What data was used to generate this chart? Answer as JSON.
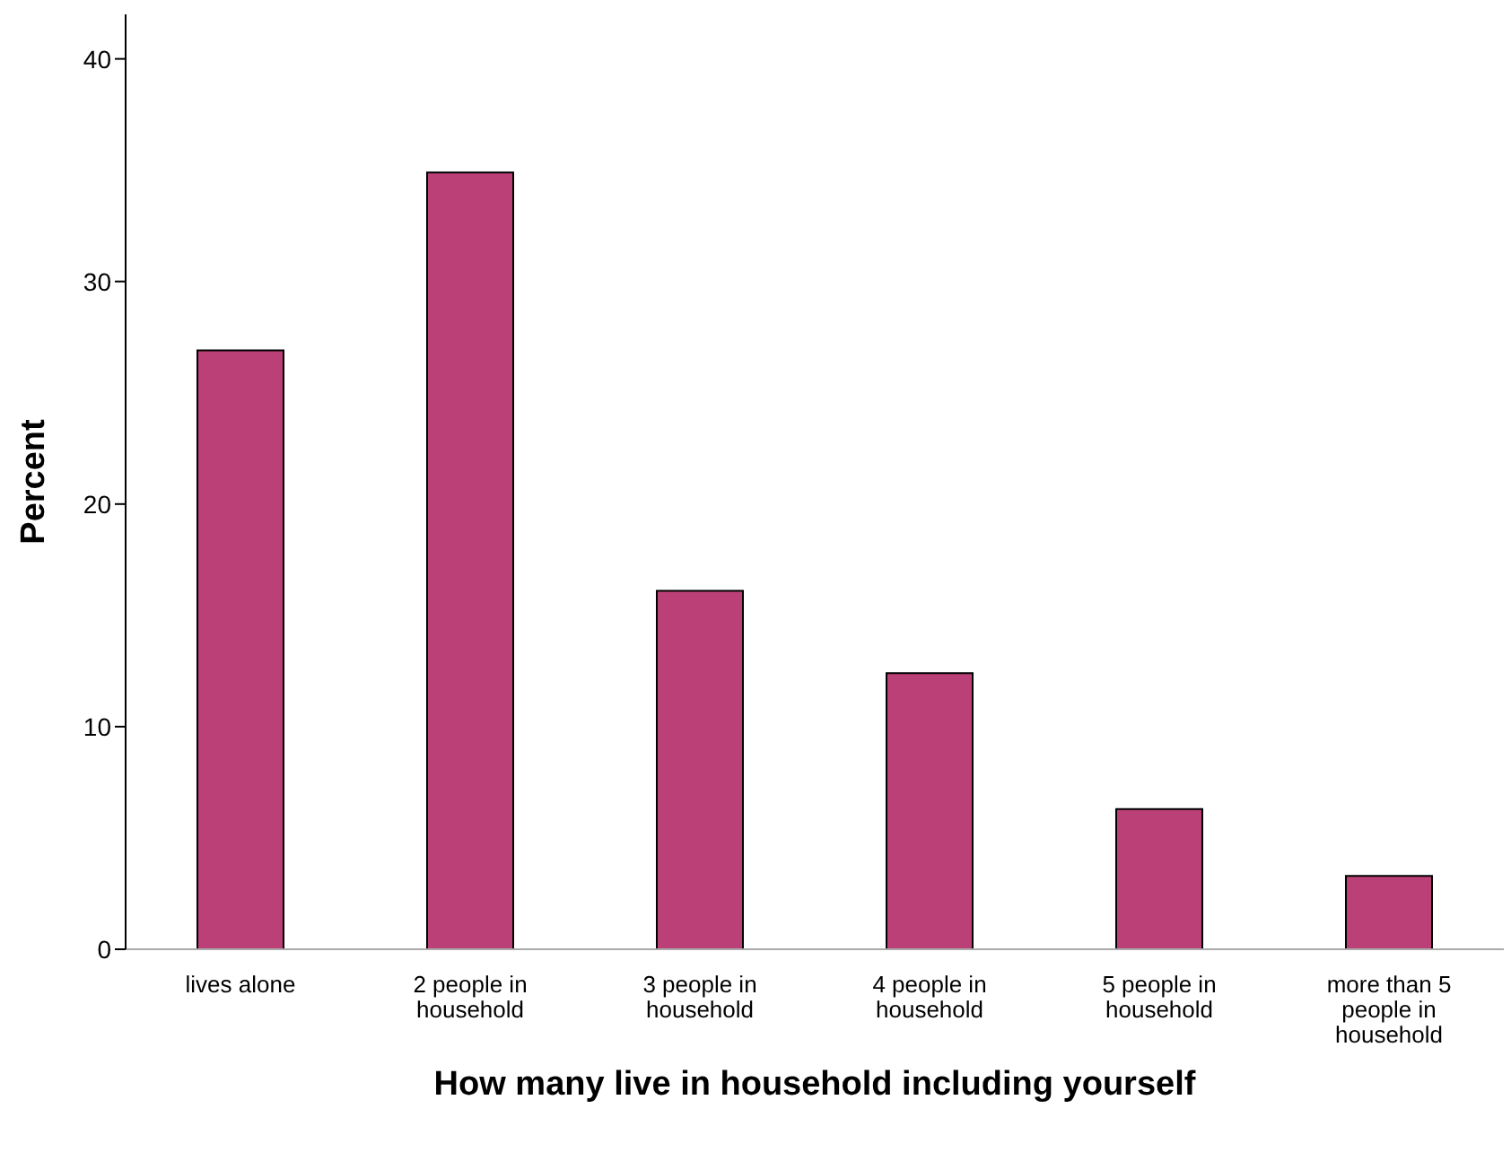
{
  "chart_data": {
    "type": "bar",
    "xlabel": "How many live in household including yourself",
    "ylabel": "Percent",
    "categories": [
      "lives alone",
      "2 people in household",
      "3 people in household",
      "4 people in household",
      "5 people in household",
      "more than 5 people in household"
    ],
    "values": [
      26.9,
      34.9,
      16.1,
      12.4,
      6.3,
      3.3
    ],
    "color": "#bc4078",
    "ylim": [
      0,
      42
    ],
    "yticks": [
      0,
      10,
      20,
      30,
      40
    ],
    "grid": false
  }
}
